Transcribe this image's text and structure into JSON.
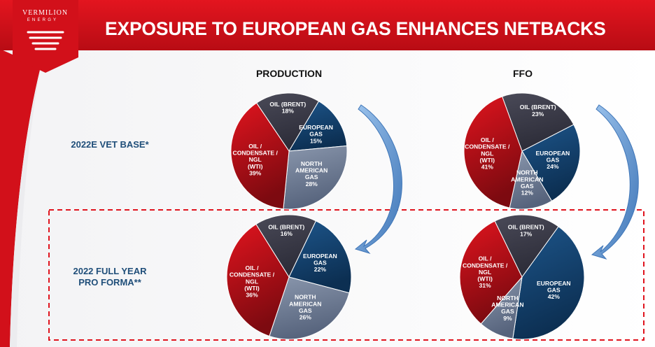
{
  "logo": {
    "name": "VERMILION",
    "sub": "ENERGY"
  },
  "title": "EXPOSURE TO EUROPEAN GAS ENHANCES NETBACKS",
  "columns": {
    "production": "PRODUCTION",
    "ffo": "FFO"
  },
  "rows": {
    "base": "2022E VET BASE*",
    "proforma_line1": "2022 FULL YEAR",
    "proforma_line2": "PRO FORMA**"
  },
  "colors": {
    "oil_brent": "#3b3b48",
    "european_gas": "#14416d",
    "north_american_gas": "#6f7e98",
    "oil_wti": "#b5121b",
    "banner": "#d2101a",
    "dashed_box": "#e0141e",
    "arrow": "#5b8fc8"
  },
  "chart_data": [
    {
      "type": "pie",
      "title": "PRODUCTION",
      "row": "2022E VET BASE*",
      "slices": [
        {
          "lines": [
            "OIL (BRENT)"
          ],
          "key": "oil_brent",
          "value": 18
        },
        {
          "lines": [
            "EUROPEAN",
            "GAS"
          ],
          "key": "european_gas",
          "value": 15
        },
        {
          "lines": [
            "NORTH",
            "AMERICAN",
            "GAS"
          ],
          "key": "north_american_gas",
          "value": 28
        },
        {
          "lines": [
            "OIL /",
            "CONDENSATE /",
            "NGL",
            "(WTI)"
          ],
          "key": "oil_wti",
          "value": 39
        }
      ]
    },
    {
      "type": "pie",
      "title": "FFO",
      "row": "2022E VET BASE*",
      "slices": [
        {
          "lines": [
            "OIL (BRENT)"
          ],
          "key": "oil_brent",
          "value": 23
        },
        {
          "lines": [
            "EUROPEAN",
            "GAS"
          ],
          "key": "european_gas",
          "value": 24
        },
        {
          "lines": [
            "NORTH",
            "AMERICAN",
            "GAS"
          ],
          "key": "north_american_gas",
          "value": 12
        },
        {
          "lines": [
            "OIL /",
            "CONDENSATE /",
            "NGL",
            "(WTI)"
          ],
          "key": "oil_wti",
          "value": 41
        }
      ]
    },
    {
      "type": "pie",
      "title": "PRODUCTION",
      "row": "2022 FULL YEAR PRO FORMA**",
      "slices": [
        {
          "lines": [
            "OIL (BRENT)"
          ],
          "key": "oil_brent",
          "value": 16
        },
        {
          "lines": [
            "EUROPEAN",
            "GAS"
          ],
          "key": "european_gas",
          "value": 22
        },
        {
          "lines": [
            "NORTH",
            "AMERICAN",
            "GAS"
          ],
          "key": "north_american_gas",
          "value": 26
        },
        {
          "lines": [
            "OIL /",
            "CONDENSATE /",
            "NGL",
            "(WTI)"
          ],
          "key": "oil_wti",
          "value": 36
        }
      ]
    },
    {
      "type": "pie",
      "title": "FFO",
      "row": "2022 FULL YEAR PRO FORMA**",
      "slices": [
        {
          "lines": [
            "OIL (BRENT)"
          ],
          "key": "oil_brent",
          "value": 17
        },
        {
          "lines": [
            "EUROPEAN",
            "GAS"
          ],
          "key": "european_gas",
          "value": 42
        },
        {
          "lines": [
            "NORTH",
            "AMERICAN",
            "GAS"
          ],
          "key": "north_american_gas",
          "value": 9
        },
        {
          "lines": [
            "OIL /",
            "CONDENSATE /",
            "NGL",
            "(WTI)"
          ],
          "key": "oil_wti",
          "value": 31
        }
      ]
    }
  ]
}
